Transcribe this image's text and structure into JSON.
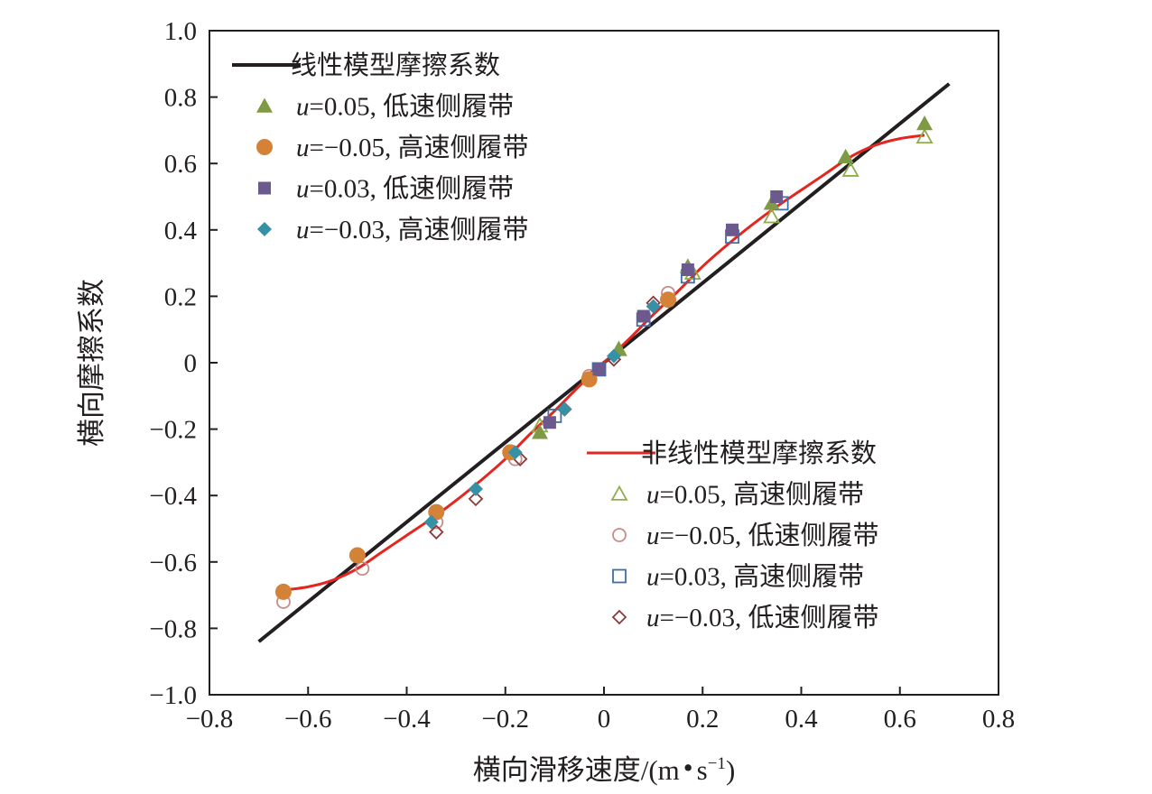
{
  "chart_data": {
    "type": "scatter",
    "xlabel_parts": {
      "main": "横向滑移速度/(m",
      "dot": "•",
      "s": "s",
      "exp": "−1",
      "close": ")"
    },
    "ylabel": "横向摩擦系数",
    "xlim": [
      -0.8,
      0.8
    ],
    "ylim": [
      -1.0,
      1.0
    ],
    "x_ticks": [
      {
        "value": -0.8,
        "label": "−0.8"
      },
      {
        "value": -0.6,
        "label": "−0.6"
      },
      {
        "value": -0.4,
        "label": "−0.4"
      },
      {
        "value": -0.2,
        "label": "−0.2"
      },
      {
        "value": 0,
        "label": "0"
      },
      {
        "value": 0.2,
        "label": "0.2"
      },
      {
        "value": 0.4,
        "label": "0.4"
      },
      {
        "value": 0.6,
        "label": "0.6"
      },
      {
        "value": 0.8,
        "label": "0.8"
      }
    ],
    "y_ticks": [
      {
        "value": 1.0,
        "label": "1.0"
      },
      {
        "value": 0.8,
        "label": "0.8"
      },
      {
        "value": 0.6,
        "label": "0.6"
      },
      {
        "value": 0.4,
        "label": "0.4"
      },
      {
        "value": 0.2,
        "label": "0.2"
      },
      {
        "value": 0,
        "label": "0"
      },
      {
        "value": -0.2,
        "label": "−0.2"
      },
      {
        "value": -0.4,
        "label": "−0.4"
      },
      {
        "value": -0.6,
        "label": "−0.6"
      },
      {
        "value": -0.8,
        "label": "−0.8"
      },
      {
        "value": -1.0,
        "label": "−1.0"
      }
    ],
    "grid": false,
    "lines": [
      {
        "name": "线性模型摩擦系数",
        "color": "#231f20",
        "legend_group": "top-left",
        "x": [
          -0.7,
          0.7
        ],
        "y": [
          -0.84,
          0.84
        ]
      },
      {
        "name": "非线性模型摩擦系数",
        "color": "#e3261f",
        "legend_group": "bottom-right",
        "x": [
          -0.65,
          -0.6,
          -0.55,
          -0.5,
          -0.45,
          -0.4,
          -0.35,
          -0.3,
          -0.25,
          -0.2,
          -0.15,
          -0.1,
          -0.05,
          0.0,
          0.05,
          0.1,
          0.15,
          0.2,
          0.25,
          0.3,
          0.35,
          0.4,
          0.45,
          0.5,
          0.55,
          0.6,
          0.65
        ],
        "y": [
          -0.685,
          -0.675,
          -0.655,
          -0.62,
          -0.57,
          -0.52,
          -0.47,
          -0.415,
          -0.355,
          -0.29,
          -0.215,
          -0.145,
          -0.07,
          0.0,
          0.07,
          0.145,
          0.215,
          0.29,
          0.355,
          0.415,
          0.47,
          0.52,
          0.57,
          0.62,
          0.655,
          0.675,
          0.685
        ]
      }
    ],
    "series": [
      {
        "label_u": "u",
        "label_rest": "=0.05, 低速侧履带",
        "marker": "triangle",
        "filled": true,
        "color": "#7e9a44",
        "legend_group": "top-left",
        "x": [
          -0.13,
          0.03,
          0.17,
          0.34,
          0.49,
          0.65
        ],
        "y": [
          -0.21,
          0.04,
          0.29,
          0.48,
          0.62,
          0.72
        ]
      },
      {
        "label_u": "u",
        "label_rest": "=−0.05, 高速侧履带",
        "marker": "circle",
        "filled": true,
        "color": "#d48237",
        "legend_group": "top-left",
        "x": [
          -0.65,
          -0.5,
          -0.34,
          -0.19,
          -0.03,
          0.13
        ],
        "y": [
          -0.69,
          -0.58,
          -0.45,
          -0.27,
          -0.05,
          0.19
        ]
      },
      {
        "label_u": "u",
        "label_rest": "=0.03, 低速侧履带",
        "marker": "square",
        "filled": true,
        "color": "#6c5a8e",
        "legend_group": "top-left",
        "x": [
          -0.11,
          -0.01,
          0.08,
          0.17,
          0.26,
          0.35
        ],
        "y": [
          -0.18,
          -0.02,
          0.14,
          0.28,
          0.4,
          0.5
        ]
      },
      {
        "label_u": "u",
        "label_rest": "=−0.03, 高速侧履带",
        "marker": "diamond",
        "filled": true,
        "color": "#3791a6",
        "legend_group": "top-left",
        "x": [
          -0.35,
          -0.26,
          -0.18,
          -0.08,
          0.02,
          0.1
        ],
        "y": [
          -0.48,
          -0.38,
          -0.27,
          -0.14,
          0.02,
          0.17
        ]
      },
      {
        "label_u": "u",
        "label_rest": "=0.05, 高速侧履带",
        "marker": "triangle",
        "filled": false,
        "color": "#8fad4c",
        "legend_group": "bottom-right",
        "x": [
          -0.13,
          0.03,
          0.18,
          0.34,
          0.5,
          0.65
        ],
        "y": [
          -0.19,
          0.04,
          0.27,
          0.44,
          0.58,
          0.68
        ]
      },
      {
        "label_u": "u",
        "label_rest": "=−0.05, 低速侧履带",
        "marker": "circle",
        "filled": false,
        "color": "#c98b8a",
        "legend_group": "bottom-right",
        "x": [
          -0.65,
          -0.49,
          -0.34,
          -0.18,
          -0.03,
          0.13
        ],
        "y": [
          -0.72,
          -0.62,
          -0.48,
          -0.29,
          -0.04,
          0.21
        ]
      },
      {
        "label_u": "u",
        "label_rest": "=0.03, 高速侧履带",
        "marker": "square",
        "filled": false,
        "color": "#3e6fa8",
        "legend_group": "bottom-right",
        "x": [
          -0.1,
          -0.01,
          0.08,
          0.17,
          0.26,
          0.36
        ],
        "y": [
          -0.16,
          -0.02,
          0.13,
          0.26,
          0.38,
          0.48
        ]
      },
      {
        "label_u": "u",
        "label_rest": "=−0.03, 低速侧履带",
        "marker": "diamond",
        "filled": false,
        "color": "#8b3a3a",
        "legend_group": "bottom-right",
        "x": [
          -0.34,
          -0.26,
          -0.17,
          -0.08,
          0.02,
          0.1
        ],
        "y": [
          -0.51,
          -0.41,
          -0.29,
          -0.14,
          0.01,
          0.18
        ]
      }
    ]
  }
}
